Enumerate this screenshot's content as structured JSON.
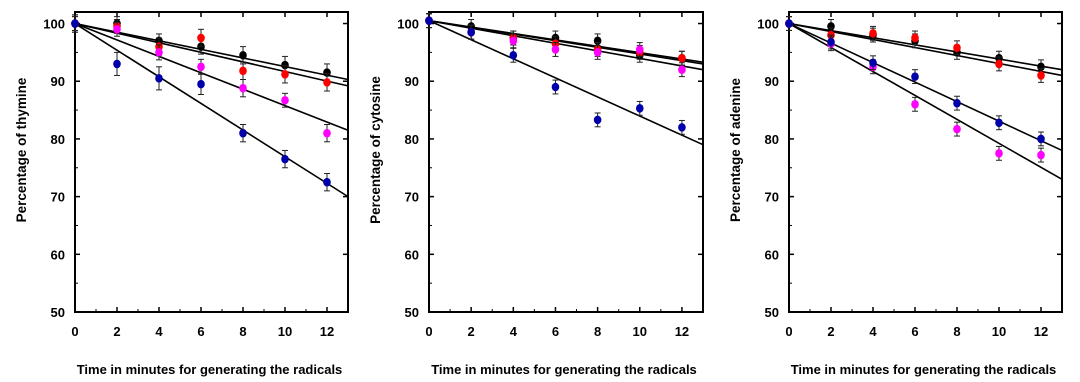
{
  "chart_data": [
    {
      "type": "scatter",
      "title": "",
      "xlabel": "Time in minutes for generating the radicals",
      "ylabel": "Percentage of thymine",
      "xlim": [
        0,
        13
      ],
      "ylim": [
        50,
        102
      ],
      "xticks": [
        0,
        2,
        4,
        6,
        8,
        10,
        12
      ],
      "yticks": [
        50,
        60,
        70,
        80,
        90,
        100
      ],
      "grid": false,
      "legend": "none",
      "series": [
        {
          "color": "#000000",
          "x": [
            0,
            2,
            4,
            6,
            8,
            10,
            12
          ],
          "y": [
            100,
            100,
            97,
            96,
            94.5,
            92.8,
            91.5
          ],
          "err": [
            1.5,
            1.2,
            1.2,
            1.3,
            1.5,
            1.5,
            1.5
          ],
          "fit": [
            100,
            90.3
          ]
        },
        {
          "color": "#ff0000",
          "x": [
            0,
            2,
            4,
            6,
            8,
            10,
            12
          ],
          "y": [
            100,
            99.5,
            96,
            97.5,
            91.8,
            91.2,
            89.8
          ],
          "err": [
            1.2,
            1.2,
            1.5,
            1.5,
            1.5,
            1.5,
            1.5
          ],
          "fit": [
            100,
            89.2
          ]
        },
        {
          "color": "#ff00ff",
          "x": [
            0,
            2,
            4,
            6,
            8,
            10,
            12
          ],
          "y": [
            100,
            99,
            95,
            92.5,
            88.8,
            86.7,
            81
          ],
          "err": [
            1.2,
            1.2,
            1.3,
            1.3,
            1.5,
            1.2,
            1.5
          ],
          "fit": [
            100,
            81.5
          ]
        },
        {
          "color": "#0000aa",
          "x": [
            0,
            2,
            4,
            6,
            8,
            10,
            12
          ],
          "y": [
            100,
            93,
            90.5,
            89.5,
            81,
            76.5,
            72.5
          ],
          "err": [
            1.5,
            2,
            2,
            1.8,
            1.5,
            1.5,
            1.5
          ],
          "fit": [
            100,
            70
          ]
        }
      ]
    },
    {
      "type": "scatter",
      "title": "",
      "xlabel": "Time in minutes for generating the radicals",
      "ylabel": "Percentage of cytosine",
      "xlim": [
        0,
        13
      ],
      "ylim": [
        50,
        102
      ],
      "xticks": [
        0,
        2,
        4,
        6,
        8,
        10,
        12
      ],
      "yticks": [
        50,
        60,
        70,
        80,
        90,
        100
      ],
      "grid": false,
      "legend": "none",
      "series": [
        {
          "color": "#000000",
          "x": [
            0,
            2,
            4,
            6,
            8,
            10,
            12
          ],
          "y": [
            100.5,
            99.5,
            97.5,
            97.5,
            97,
            94.5,
            94
          ],
          "err": [
            1.2,
            1.2,
            1.2,
            1.2,
            1.2,
            1.2,
            1.2
          ],
          "fit": [
            100.5,
            93.3
          ]
        },
        {
          "color": "#ff0000",
          "x": [
            0,
            2,
            4,
            6,
            8,
            10,
            12
          ],
          "y": [
            100.5,
            98.5,
            97.5,
            96.5,
            95.5,
            95,
            94
          ],
          "err": [
            1.2,
            1.2,
            1.2,
            1.2,
            1.2,
            1.2,
            1.2
          ],
          "fit": [
            100.5,
            93
          ]
        },
        {
          "color": "#ff00ff",
          "x": [
            0,
            2,
            4,
            6,
            8,
            10,
            12
          ],
          "y": [
            100.5,
            98.5,
            97,
            95.5,
            95,
            95.5,
            92
          ],
          "err": [
            1.2,
            1.2,
            1.2,
            1.2,
            1.2,
            1.2,
            1.2
          ],
          "fit": [
            100.5,
            92
          ]
        },
        {
          "color": "#0000aa",
          "x": [
            0,
            2,
            4,
            6,
            8,
            10,
            12
          ],
          "y": [
            100.5,
            98.5,
            94.5,
            89,
            83.3,
            85.3,
            82
          ],
          "err": [
            1.2,
            1.2,
            1.2,
            1.2,
            1.2,
            1.2,
            1.2
          ],
          "fit": [
            100.5,
            79
          ]
        }
      ]
    },
    {
      "type": "scatter",
      "title": "",
      "xlabel": "Time in minutes for generating the radicals",
      "ylabel": "Percentage of adenine",
      "xlim": [
        0,
        13
      ],
      "ylim": [
        50,
        102
      ],
      "xticks": [
        0,
        2,
        4,
        6,
        8,
        10,
        12
      ],
      "yticks": [
        50,
        60,
        70,
        80,
        90,
        100
      ],
      "grid": false,
      "legend": "none",
      "series": [
        {
          "color": "#000000",
          "x": [
            0,
            2,
            4,
            6,
            8,
            10,
            12
          ],
          "y": [
            100,
            99.5,
            98,
            97,
            95,
            94,
            92.5
          ],
          "err": [
            1.2,
            1.2,
            1.2,
            1.2,
            1.2,
            1.2,
            1.2
          ],
          "fit": [
            100,
            92
          ]
        },
        {
          "color": "#ff0000",
          "x": [
            0,
            2,
            4,
            6,
            8,
            10,
            12
          ],
          "y": [
            100,
            98,
            98.3,
            97.5,
            95.8,
            93,
            91
          ],
          "err": [
            1.2,
            1.2,
            1.2,
            1.2,
            1.2,
            1.2,
            1.2
          ],
          "fit": [
            100,
            91
          ]
        },
        {
          "color": "#ff00ff",
          "x": [
            0,
            2,
            4,
            6,
            8,
            10,
            12
          ],
          "y": [
            100,
            96.5,
            92.5,
            86,
            81.7,
            77.5,
            77.2
          ],
          "err": [
            1.2,
            1.2,
            1.2,
            1.2,
            1.2,
            1.2,
            1.2
          ],
          "fit": [
            100,
            73
          ]
        },
        {
          "color": "#0000aa",
          "x": [
            0,
            2,
            4,
            6,
            8,
            10,
            12
          ],
          "y": [
            100,
            96.8,
            93.2,
            90.8,
            86.2,
            82.8,
            80
          ],
          "err": [
            1.2,
            1.2,
            1.2,
            1.2,
            1.2,
            1.2,
            1.2
          ],
          "fit": [
            100,
            78
          ]
        }
      ]
    }
  ]
}
